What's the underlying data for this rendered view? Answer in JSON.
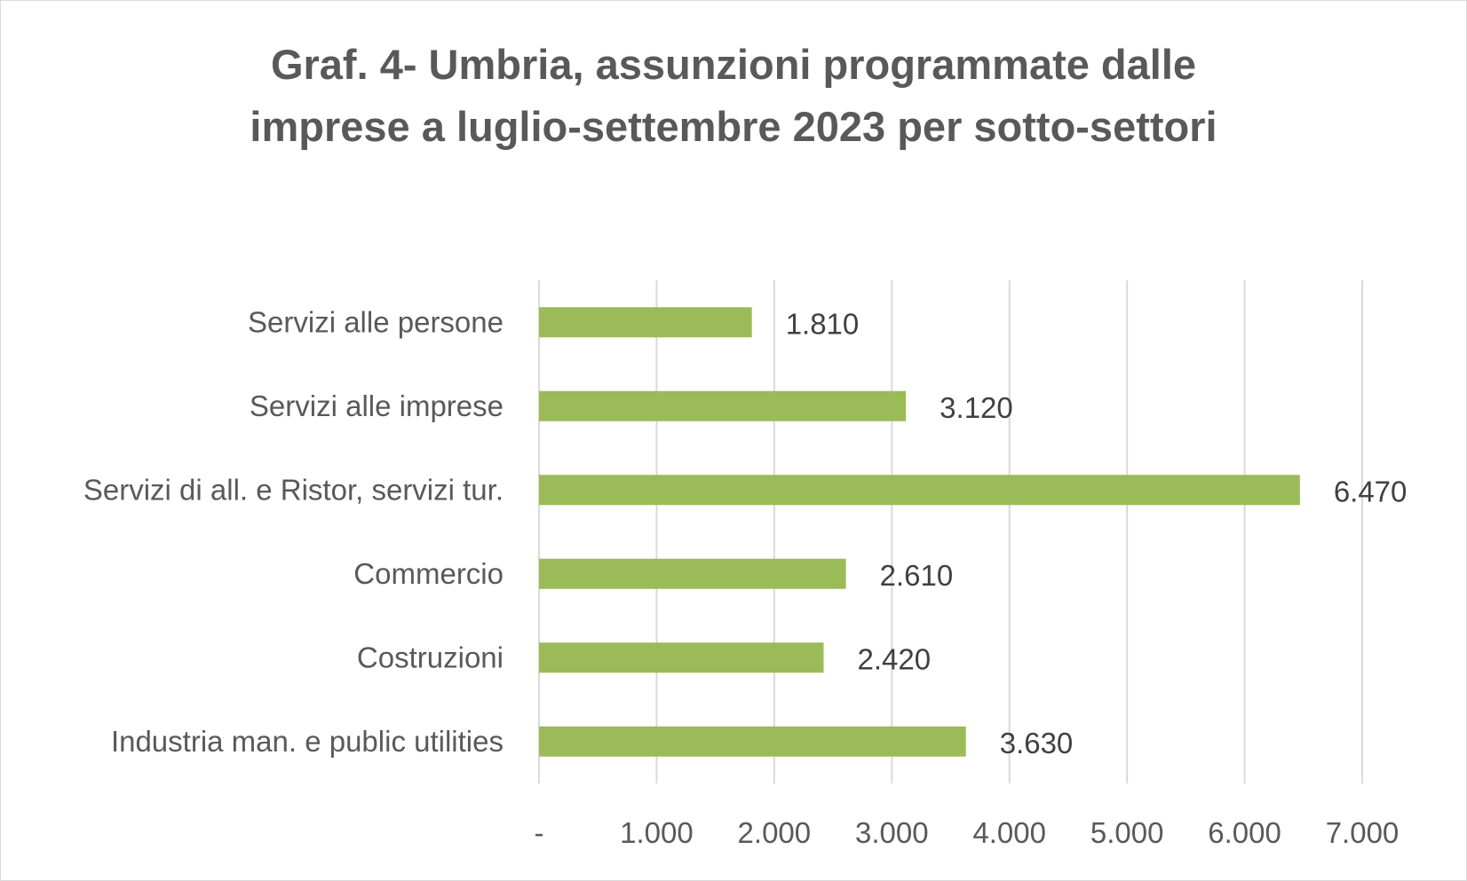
{
  "chart_data": {
    "type": "bar",
    "orientation": "horizontal",
    "title_lines": [
      "Graf. 4- Umbria, assunzioni programmate dalle",
      "imprese a luglio-settembre 2023 per sotto-settori"
    ],
    "categories": [
      "Servizi alle persone",
      "Servizi alle imprese",
      "Servizi di all. e Ristor, servizi tur.",
      "Commercio",
      "Costruzioni",
      "Industria man. e public utilities"
    ],
    "values": [
      1810,
      3120,
      6470,
      2610,
      2420,
      3630
    ],
    "data_labels": [
      "1.810",
      "3.120",
      "6.470",
      "2.610",
      "2.420",
      "3.630"
    ],
    "xlim": [
      0,
      7000
    ],
    "x_ticks": [
      0,
      1000,
      2000,
      3000,
      4000,
      5000,
      6000,
      7000
    ],
    "x_tick_labels": [
      "-",
      "1.000",
      "2.000",
      "3.000",
      "4.000",
      "5.000",
      "6.000",
      "7.000"
    ],
    "grid": true,
    "legend": "none",
    "bar_color": "#9bbb59",
    "grid_color": "#d9d9d9",
    "text_color": "#595959"
  }
}
